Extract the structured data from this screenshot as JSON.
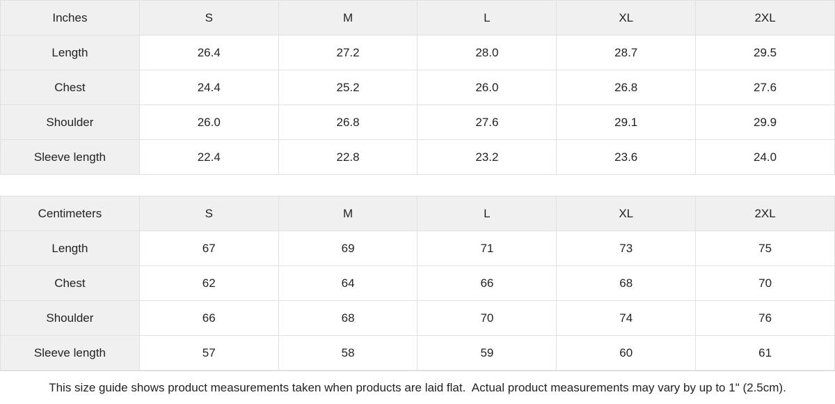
{
  "colors": {
    "header_bg": "#f0f0f0",
    "label_column_bg": "#f0f0f0",
    "cell_bg": "#ffffff",
    "border": "#e0e0e0",
    "text": "#222222"
  },
  "footer": {
    "note": "This size guide shows product measurements taken when products are laid flat.  Actual product measurements may vary by up to 1\" (2.5cm)."
  },
  "chart_data": [
    {
      "type": "table",
      "title": "Inches",
      "columns": [
        "Inches",
        "S",
        "M",
        "L",
        "XL",
        "2XL"
      ],
      "rows": [
        {
          "label": "Length",
          "values": [
            "26.4",
            "27.2",
            "28.0",
            "28.7",
            "29.5"
          ]
        },
        {
          "label": "Chest",
          "values": [
            "24.4",
            "25.2",
            "26.0",
            "26.8",
            "27.6"
          ]
        },
        {
          "label": "Shoulder",
          "values": [
            "26.0",
            "26.8",
            "27.6",
            "29.1",
            "29.9"
          ]
        },
        {
          "label": "Sleeve length",
          "values": [
            "22.4",
            "22.8",
            "23.2",
            "23.6",
            "24.0"
          ]
        }
      ]
    },
    {
      "type": "table",
      "title": "Centimeters",
      "columns": [
        "Centimeters",
        "S",
        "M",
        "L",
        "XL",
        "2XL"
      ],
      "rows": [
        {
          "label": "Length",
          "values": [
            "67",
            "69",
            "71",
            "73",
            "75"
          ]
        },
        {
          "label": "Chest",
          "values": [
            "62",
            "64",
            "66",
            "68",
            "70"
          ]
        },
        {
          "label": "Shoulder",
          "values": [
            "66",
            "68",
            "70",
            "74",
            "76"
          ]
        },
        {
          "label": "Sleeve length",
          "values": [
            "57",
            "58",
            "59",
            "60",
            "61"
          ]
        }
      ]
    }
  ]
}
